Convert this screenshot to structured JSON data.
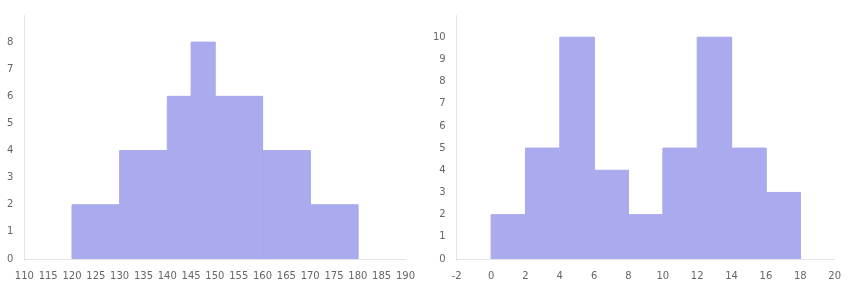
{
  "chart_data": [
    {
      "type": "histogram",
      "bins": [
        120,
        130,
        140,
        145,
        150,
        160,
        170,
        180
      ],
      "values": [
        2,
        4,
        6,
        8,
        6,
        4,
        2
      ],
      "color": "#aaaaee",
      "xlim": [
        110,
        190
      ],
      "ylim": [
        0,
        9
      ],
      "xticks": [
        110,
        115,
        120,
        125,
        130,
        135,
        140,
        145,
        150,
        155,
        160,
        165,
        170,
        175,
        180,
        185,
        190
      ],
      "yticks": [
        0,
        1,
        2,
        3,
        4,
        5,
        6,
        7,
        8
      ],
      "grid": false
    },
    {
      "type": "histogram",
      "bins": [
        0,
        2,
        4,
        6,
        8,
        10,
        12,
        14,
        16,
        18
      ],
      "values": [
        2,
        5,
        10,
        4,
        2,
        5,
        10,
        5,
        3
      ],
      "color": "#aaaaee",
      "xlim": [
        -2,
        20
      ],
      "ylim": [
        0,
        11
      ],
      "xticks": [
        -2,
        0,
        2,
        4,
        6,
        8,
        10,
        12,
        14,
        16,
        18,
        20
      ],
      "yticks": [
        0,
        1,
        2,
        3,
        4,
        5,
        6,
        7,
        8,
        9,
        10
      ],
      "grid": false
    }
  ]
}
